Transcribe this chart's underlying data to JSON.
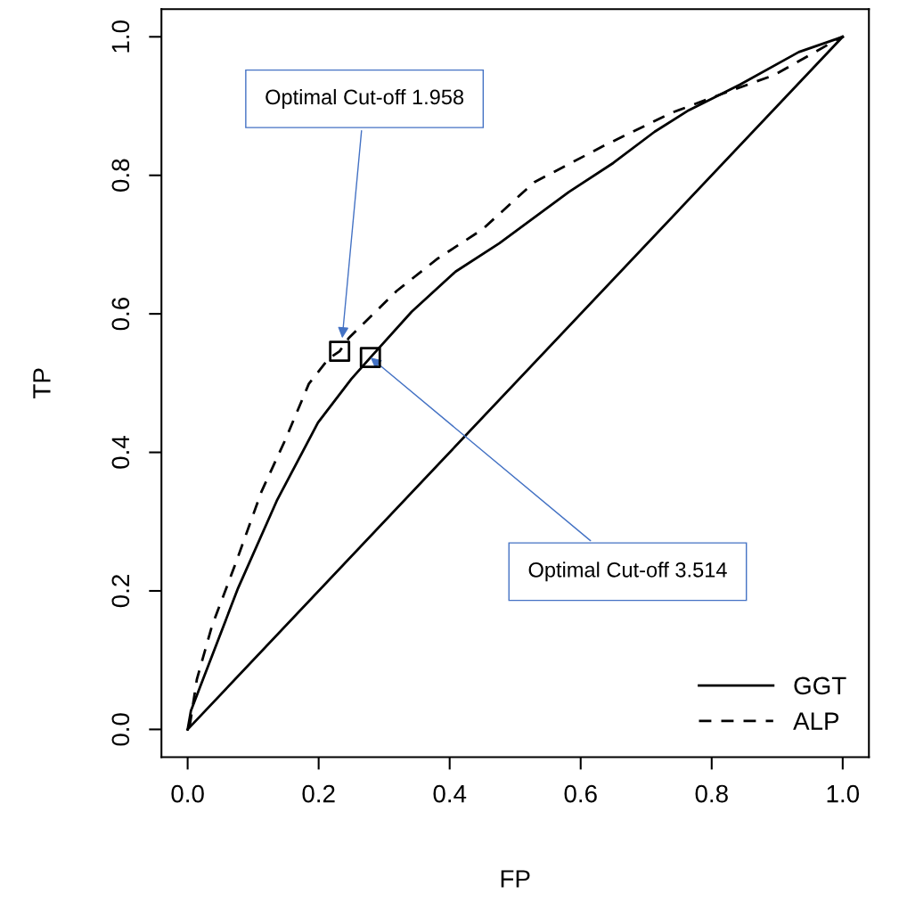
{
  "chart_data": {
    "type": "line",
    "xlabel": "FP",
    "ylabel": "TP",
    "xlim": [
      -0.04,
      1.04
    ],
    "ylim": [
      -0.04,
      1.04
    ],
    "xticks": [
      {
        "value": 0,
        "label": "0.0"
      },
      0.2,
      0.4,
      0.6,
      0.8,
      {
        "value": 1,
        "label": "1.0"
      }
    ],
    "yticks": [
      {
        "value": 0,
        "label": "0.0"
      },
      0.2,
      0.4,
      0.6,
      0.8,
      {
        "value": 1,
        "label": "1.0"
      }
    ],
    "grid": false,
    "legend": "bottom right",
    "series": [
      {
        "name": "GGT",
        "color": "#000000",
        "line_style": "solid",
        "x": [
          0,
          0.005,
          0.077,
          0.136,
          0.199,
          0.25,
          0.279,
          0.342,
          0.409,
          0.476,
          0.582,
          0.65,
          0.713,
          0.765,
          0.843,
          0.933,
          1
        ],
        "values": [
          0,
          0.027,
          0.204,
          0.33,
          0.443,
          0.506,
          0.537,
          0.603,
          0.661,
          0.702,
          0.776,
          0.818,
          0.863,
          0.894,
          0.931,
          0.978,
          1
        ]
      },
      {
        "name": "ALP",
        "color": "#000000",
        "line_style": "dashed",
        "x": [
          0.003,
          0.014,
          0.037,
          0.073,
          0.113,
          0.149,
          0.185,
          0.215,
          0.232,
          0.246,
          0.319,
          0.382,
          0.45,
          0.529,
          0.634,
          0.738,
          0.817,
          0.896,
          0.995,
          1
        ],
        "values": [
          0.004,
          0.072,
          0.149,
          0.239,
          0.344,
          0.418,
          0.499,
          0.535,
          0.546,
          0.565,
          0.633,
          0.68,
          0.722,
          0.79,
          0.842,
          0.89,
          0.918,
          0.945,
          0.998,
          1
        ]
      },
      {
        "color": "#000000",
        "line_style": "solid",
        "x": [
          0,
          1
        ],
        "values": [
          0,
          1
        ]
      },
      {
        "type": "scatter",
        "marker": "square",
        "color": "#000000",
        "x": [
          0.232,
          0.279
        ],
        "values": [
          0.546,
          0.537
        ]
      }
    ],
    "annotations": [
      {
        "text": "Optimal Cut-off 1.958",
        "x": 0.236,
        "y": 0.565
      },
      {
        "text": "Optimal Cut-off 3.514",
        "x": 0.279,
        "y": 0.537
      }
    ]
  }
}
